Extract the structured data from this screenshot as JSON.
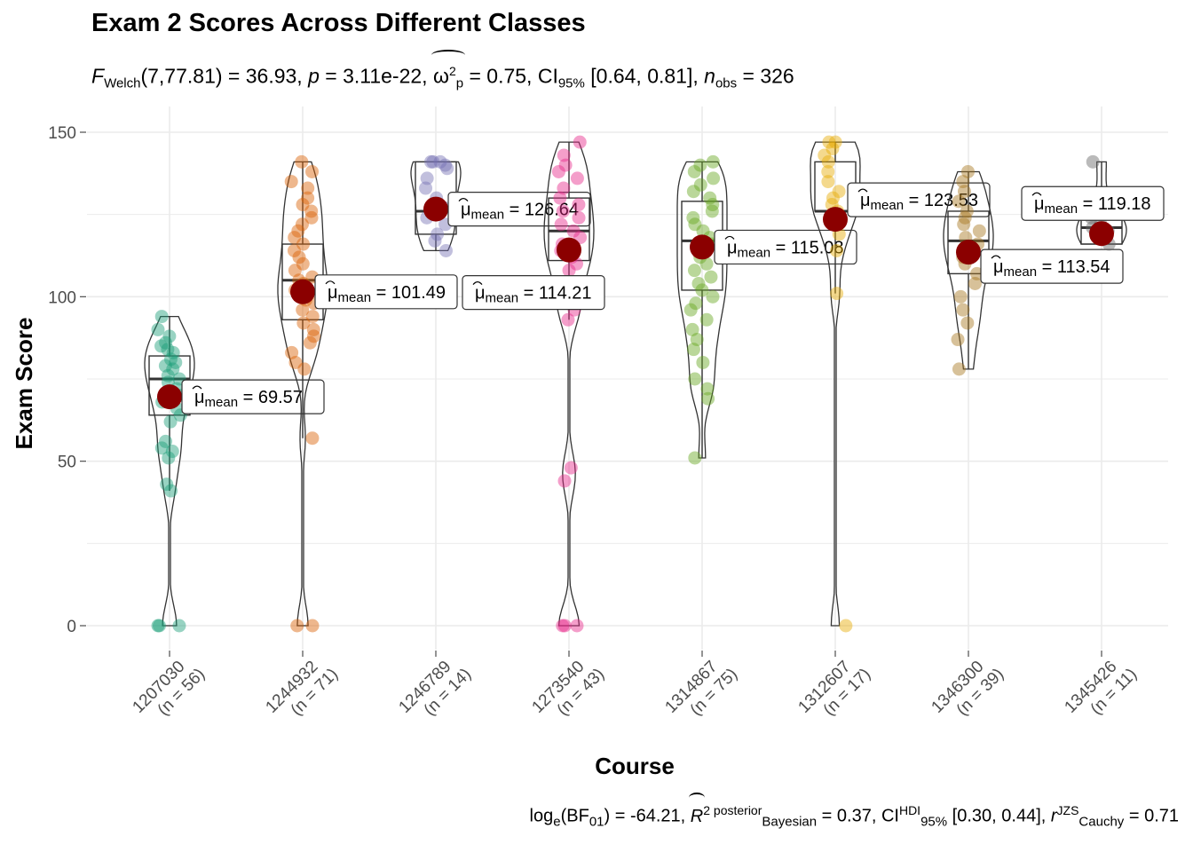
{
  "title": "Exam 2 Scores Across Different Classes",
  "subtitle": {
    "stat_name": "F",
    "stat_sub": "Welch",
    "df": "(7,77.81) = 36.93, ",
    "p_label": "p",
    "p_value": " = 3.11e-22, ",
    "effect_symbol": "ω",
    "effect_sup": "2",
    "effect_sub": "p",
    "effect_value": " = 0.75, CI",
    "ci_sub": "95%",
    "ci_value": " [0.64, 0.81], ",
    "n_label": "n",
    "n_sub": "obs",
    "n_value": " = 326"
  },
  "caption": {
    "bf_prefix": "log",
    "bf_e": "e",
    "bf_mid": "(BF",
    "bf_sub": "01",
    "bf_value": ") = -64.21, ",
    "r_symbol": "R",
    "r_sup": "2 posterior",
    "r_sub": "Bayesian",
    "r_value": " = 0.37, CI",
    "ci_sup": "HDI",
    "ci_sub": "95%",
    "ci_value": " [0.30, 0.44], ",
    "rc_symbol": "r",
    "rc_sup": "JZS",
    "rc_sub": "Cauchy",
    "rc_value": " = 0.71"
  },
  "mean_label_prefix": "μ",
  "mean_label_sub": "mean",
  "chart_data": {
    "type": "violin-box-scatter",
    "xlabel": "Course",
    "ylabel": "Exam Score",
    "ylim": [
      -8,
      150
    ],
    "yticks": [
      0,
      50,
      100,
      150
    ],
    "grid": true,
    "categories": [
      {
        "course": "1207030",
        "n_label": "(n = 56)",
        "color": "#1b9e77",
        "mean": 69.57,
        "mean_text": "69.57",
        "box": {
          "q1": 64,
          "median": 75,
          "q3": 82
        },
        "whiskers": [
          41,
          94
        ],
        "violin_range": [
          0,
          94
        ],
        "points": [
          0,
          0,
          0,
          41,
          43,
          51,
          53,
          54,
          56,
          62,
          64,
          66,
          68,
          70,
          72,
          74,
          75,
          76,
          78,
          79,
          80,
          81,
          83,
          84,
          85,
          86,
          88,
          90,
          94
        ]
      },
      {
        "course": "1244932",
        "n_label": "(n = 71)",
        "color": "#d95f02",
        "mean": 101.49,
        "mean_text": "101.49",
        "box": {
          "q1": 93,
          "median": 105,
          "q3": 116
        },
        "whiskers": [
          57,
          141
        ],
        "violin_range": [
          0,
          141
        ],
        "points": [
          0,
          0,
          57,
          78,
          80,
          83,
          86,
          88,
          90,
          92,
          94,
          96,
          98,
          99,
          100,
          102,
          104,
          105,
          106,
          108,
          110,
          112,
          114,
          116,
          118,
          120,
          122,
          124,
          126,
          128,
          130,
          133,
          135,
          138,
          141
        ]
      },
      {
        "course": "1246789",
        "n_label": "(n = 14)",
        "color": "#7570b3",
        "mean": 126.64,
        "mean_text": "126.64",
        "box": {
          "q1": 119,
          "median": 126,
          "q3": 141
        },
        "whiskers": [
          114,
          141
        ],
        "violin_range": [
          114,
          141
        ],
        "points": [
          114,
          117,
          119,
          122,
          124,
          127,
          130,
          133,
          136,
          139,
          140,
          141,
          141,
          141
        ]
      },
      {
        "course": "1273540",
        "n_label": "(n = 43)",
        "color": "#e7298a",
        "mean": 114.21,
        "mean_text": "114.21",
        "box": {
          "q1": 111,
          "median": 120,
          "q3": 130
        },
        "whiskers": [
          93,
          147
        ],
        "violin_range": [
          0,
          147
        ],
        "points": [
          0,
          0,
          0,
          44,
          48,
          93,
          96,
          100,
          104,
          108,
          110,
          112,
          114,
          116,
          118,
          120,
          122,
          124,
          126,
          128,
          130,
          133,
          136,
          138,
          140,
          143,
          147
        ]
      },
      {
        "course": "1314867",
        "n_label": "(n = 75)",
        "color": "#66a61e",
        "mean": 115.08,
        "mean_text": "115.08",
        "box": {
          "q1": 102,
          "median": 117,
          "q3": 129
        },
        "whiskers": [
          51,
          141
        ],
        "violin_range": [
          51,
          141
        ],
        "points": [
          51,
          69,
          72,
          75,
          80,
          84,
          87,
          90,
          93,
          96,
          98,
          100,
          102,
          104,
          106,
          108,
          110,
          112,
          114,
          116,
          118,
          120,
          122,
          124,
          126,
          128,
          130,
          132,
          134,
          136,
          138,
          140,
          141
        ]
      },
      {
        "course": "1312607",
        "n_label": "(n = 17)",
        "color": "#e6ab02",
        "mean": 123.53,
        "mean_text": "123.53",
        "box": {
          "q1": 126,
          "median": 126,
          "q3": 141
        },
        "whiskers": [
          101,
          147
        ],
        "violin_range": [
          0,
          147
        ],
        "points": [
          0,
          101,
          114,
          119,
          124,
          126,
          128,
          130,
          132,
          135,
          138,
          141,
          143,
          145,
          147,
          147
        ]
      },
      {
        "course": "1346300",
        "n_label": "(n = 39)",
        "color": "#a6761d",
        "mean": 113.54,
        "mean_text": "113.54",
        "box": {
          "q1": 107,
          "median": 117,
          "q3": 126
        },
        "whiskers": [
          78,
          138
        ],
        "violin_range": [
          78,
          138
        ],
        "points": [
          78,
          87,
          92,
          96,
          100,
          104,
          107,
          110,
          112,
          114,
          116,
          118,
          120,
          122,
          124,
          126,
          129,
          132,
          135,
          138
        ]
      },
      {
        "course": "1345426",
        "n_label": "(n = 11)",
        "color": "#666666",
        "mean": 119.18,
        "mean_text": "119.18",
        "box": {
          "q1": 116,
          "median": 121,
          "q3": 124
        },
        "whiskers": [
          116,
          141
        ],
        "violin_range": [
          116,
          141
        ],
        "points": [
          116,
          118,
          120,
          121,
          122,
          124,
          141
        ]
      }
    ],
    "mean_marker_color": "#8b0000"
  }
}
